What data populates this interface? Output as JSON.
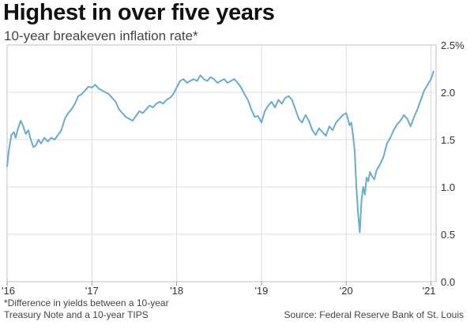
{
  "title": "Highest in over five years",
  "subtitle": "10-year breakeven inflation rate*",
  "footnote_line1": "*Difference in yields between a 10-year",
  "footnote_line2": "Treasury Note and a 10-year TIPS",
  "source": "Source: Federal Reserve Bank of St. Louis",
  "chart_data": {
    "type": "line",
    "title": "Highest in over five years",
    "subtitle": "10-year breakeven inflation rate*",
    "xlabel": "",
    "ylabel": "",
    "xlim": [
      2016.0,
      2021.06
    ],
    "ylim": [
      0.0,
      2.5
    ],
    "grid": true,
    "line_color": "#6aaccc",
    "x_ticks": [
      {
        "value": 2016,
        "label": "'16"
      },
      {
        "value": 2017,
        "label": "'17"
      },
      {
        "value": 2018,
        "label": "'18"
      },
      {
        "value": 2019,
        "label": "'19"
      },
      {
        "value": 2020,
        "label": "'20"
      },
      {
        "value": 2021,
        "label": "'21"
      }
    ],
    "y_ticks": [
      {
        "value": 0.0,
        "label": "0.0"
      },
      {
        "value": 0.5,
        "label": "0.5"
      },
      {
        "value": 1.0,
        "label": "1.0"
      },
      {
        "value": 1.5,
        "label": "1.5"
      },
      {
        "value": 2.0,
        "label": "2.0"
      },
      {
        "value": 2.5,
        "label": "2.5%"
      }
    ],
    "series": [
      {
        "x": [
          2016.0,
          2016.02,
          2016.05,
          2016.08,
          2016.1,
          2016.13,
          2016.16,
          2016.19,
          2016.22,
          2016.25,
          2016.28,
          2016.31,
          2016.34,
          2016.37,
          2016.4,
          2016.44,
          2016.48,
          2016.52,
          2016.56,
          2016.6,
          2016.64,
          2016.68,
          2016.72,
          2016.76,
          2016.8,
          2016.84,
          2016.88,
          2016.92,
          2016.96,
          2017.0,
          2017.04,
          2017.08,
          2017.12,
          2017.16,
          2017.2,
          2017.24,
          2017.28,
          2017.32,
          2017.36,
          2017.4,
          2017.44,
          2017.48,
          2017.52,
          2017.56,
          2017.6,
          2017.64,
          2017.68,
          2017.72,
          2017.76,
          2017.8,
          2017.84,
          2017.88,
          2017.92,
          2017.96,
          2018.0,
          2018.04,
          2018.08,
          2018.12,
          2018.16,
          2018.2,
          2018.24,
          2018.28,
          2018.32,
          2018.36,
          2018.4,
          2018.44,
          2018.48,
          2018.52,
          2018.56,
          2018.6,
          2018.64,
          2018.68,
          2018.72,
          2018.76,
          2018.8,
          2018.84,
          2018.88,
          2018.92,
          2018.96,
          2019.0,
          2019.04,
          2019.08,
          2019.12,
          2019.16,
          2019.2,
          2019.24,
          2019.28,
          2019.32,
          2019.36,
          2019.4,
          2019.44,
          2019.48,
          2019.52,
          2019.56,
          2019.6,
          2019.64,
          2019.68,
          2019.72,
          2019.76,
          2019.8,
          2019.84,
          2019.88,
          2019.92,
          2019.96,
          2020.0,
          2020.02,
          2020.04,
          2020.06,
          2020.08,
          2020.1,
          2020.12,
          2020.14,
          2020.16,
          2020.18,
          2020.2,
          2020.22,
          2020.24,
          2020.26,
          2020.28,
          2020.3,
          2020.33,
          2020.36,
          2020.4,
          2020.44,
          2020.48,
          2020.52,
          2020.56,
          2020.6,
          2020.64,
          2020.68,
          2020.72,
          2020.76,
          2020.8,
          2020.84,
          2020.88,
          2020.92,
          2020.96,
          2021.0,
          2021.03
        ],
        "y": [
          1.22,
          1.38,
          1.55,
          1.58,
          1.52,
          1.62,
          1.7,
          1.64,
          1.56,
          1.6,
          1.5,
          1.42,
          1.44,
          1.5,
          1.46,
          1.52,
          1.48,
          1.52,
          1.5,
          1.55,
          1.6,
          1.72,
          1.78,
          1.82,
          1.88,
          1.96,
          1.98,
          2.02,
          2.06,
          2.05,
          2.08,
          2.04,
          2.02,
          2.0,
          1.98,
          1.94,
          1.9,
          1.82,
          1.78,
          1.74,
          1.72,
          1.7,
          1.75,
          1.8,
          1.78,
          1.82,
          1.86,
          1.84,
          1.88,
          1.9,
          1.88,
          1.92,
          1.94,
          1.98,
          2.05,
          2.12,
          2.14,
          2.1,
          2.12,
          2.14,
          2.12,
          2.18,
          2.14,
          2.12,
          2.16,
          2.14,
          2.1,
          2.12,
          2.14,
          2.1,
          2.12,
          2.14,
          2.1,
          2.05,
          1.98,
          1.92,
          1.82,
          1.74,
          1.75,
          1.68,
          1.8,
          1.86,
          1.9,
          1.84,
          1.92,
          1.88,
          1.94,
          1.96,
          1.92,
          1.82,
          1.72,
          1.68,
          1.76,
          1.7,
          1.6,
          1.55,
          1.62,
          1.58,
          1.54,
          1.64,
          1.6,
          1.68,
          1.72,
          1.76,
          1.78,
          1.72,
          1.65,
          1.68,
          1.55,
          1.38,
          1.0,
          0.72,
          0.52,
          0.86,
          1.0,
          0.92,
          1.1,
          1.06,
          1.16,
          1.12,
          1.08,
          1.18,
          1.24,
          1.32,
          1.46,
          1.52,
          1.6,
          1.66,
          1.7,
          1.76,
          1.72,
          1.64,
          1.74,
          1.82,
          1.92,
          2.02,
          2.08,
          2.14,
          2.22
        ]
      }
    ]
  }
}
